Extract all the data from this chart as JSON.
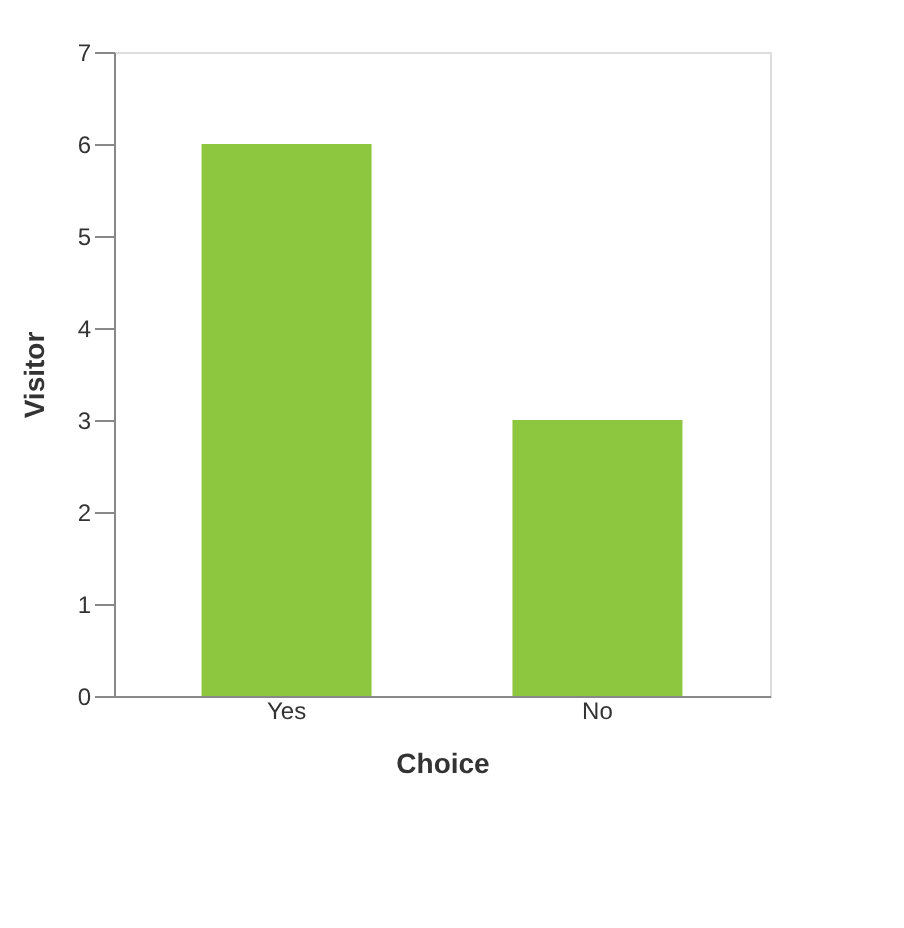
{
  "chart_data": {
    "type": "bar",
    "xlabel": "Choice",
    "ylabel": "Visitor",
    "categories": [
      "Yes",
      "No"
    ],
    "values": [
      6,
      3
    ],
    "color": "#8dc63f",
    "ylim": [
      0,
      7
    ],
    "yticks": [
      0,
      1,
      2,
      3,
      4,
      5,
      6,
      7
    ],
    "grid": false
  }
}
